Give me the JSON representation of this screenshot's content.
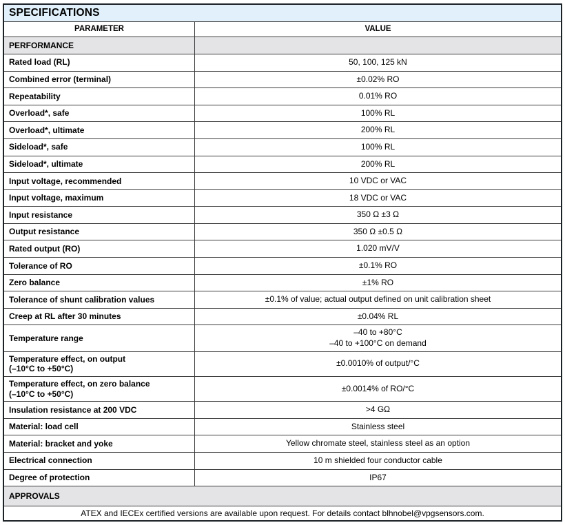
{
  "table": {
    "title": "SPECIFICATIONS",
    "columns": {
      "parameter": "PARAMETER",
      "value": "VALUE"
    },
    "colors": {
      "title_bg": "#e1f0fa",
      "section_bg": "#e4e4e6",
      "border": "#3a3a3a",
      "outer_border": "#1c2126"
    },
    "rows": [
      {
        "type": "section",
        "label": "PERFORMANCE",
        "split": true
      },
      {
        "type": "data",
        "param": "Rated load (RL)",
        "value": "50, 100, 125 kN"
      },
      {
        "type": "data",
        "param": "Combined error (terminal)",
        "value": "±0.02% RO"
      },
      {
        "type": "data",
        "param": "Repeatability",
        "value": "0.01% RO"
      },
      {
        "type": "data",
        "param": "Overload*, safe",
        "value": "100% RL"
      },
      {
        "type": "data",
        "param": "Overload*, ultimate",
        "value": "200% RL"
      },
      {
        "type": "data",
        "param": "Sideload*, safe",
        "value": "100% RL"
      },
      {
        "type": "data",
        "param": "Sideload*, ultimate",
        "value": "200% RL"
      },
      {
        "type": "data",
        "param": "Input voltage, recommended",
        "value": "10 VDC or VAC"
      },
      {
        "type": "data",
        "param": "Input voltage, maximum",
        "value": "18 VDC or VAC"
      },
      {
        "type": "data",
        "param": "Input resistance",
        "value": "350 Ω ±3 Ω"
      },
      {
        "type": "data",
        "param": "Output resistance",
        "value": "350 Ω ±0.5 Ω"
      },
      {
        "type": "data",
        "param": "Rated output (RO)",
        "value": "1.020 mV/V"
      },
      {
        "type": "data",
        "param": "Tolerance of RO",
        "value": "±0.1% RO"
      },
      {
        "type": "data",
        "param": "Zero balance",
        "value": "±1% RO"
      },
      {
        "type": "data",
        "param": "Tolerance of shunt calibration values",
        "value": "±0.1% of value; actual output defined on unit calibration sheet"
      },
      {
        "type": "data",
        "param": "Creep at RL after 30 minutes",
        "value": "±0.04% RL"
      },
      {
        "type": "data",
        "param": "Temperature range",
        "value": "–40 to +80°C\n–40 to +100°C on demand"
      },
      {
        "type": "data",
        "param": "Temperature effect, on output\n(–10°C to +50°C)",
        "value": "±0.0010% of output/°C"
      },
      {
        "type": "data",
        "param": "Temperature effect, on zero balance\n(–10°C to +50°C)",
        "value": "±0.0014% of RO/°C"
      },
      {
        "type": "data",
        "param": "Insulation resistance at 200 VDC",
        "value": ">4 GΩ"
      },
      {
        "type": "data",
        "param": "Material: load cell",
        "value": "Stainless steel"
      },
      {
        "type": "data",
        "param": "Material: bracket and yoke",
        "value": "Yellow chromate steel, stainless steel as an option"
      },
      {
        "type": "data",
        "param": "Electrical connection",
        "value": "10 m shielded four conductor cable"
      },
      {
        "type": "data",
        "param": "Degree of protection",
        "value": "IP67"
      },
      {
        "type": "section",
        "label": "APPROVALS",
        "split": false
      },
      {
        "type": "note",
        "text": "ATEX and IECEx certified versions are available upon request. For details contact blhnobel@vpgsensors.com."
      }
    ]
  }
}
